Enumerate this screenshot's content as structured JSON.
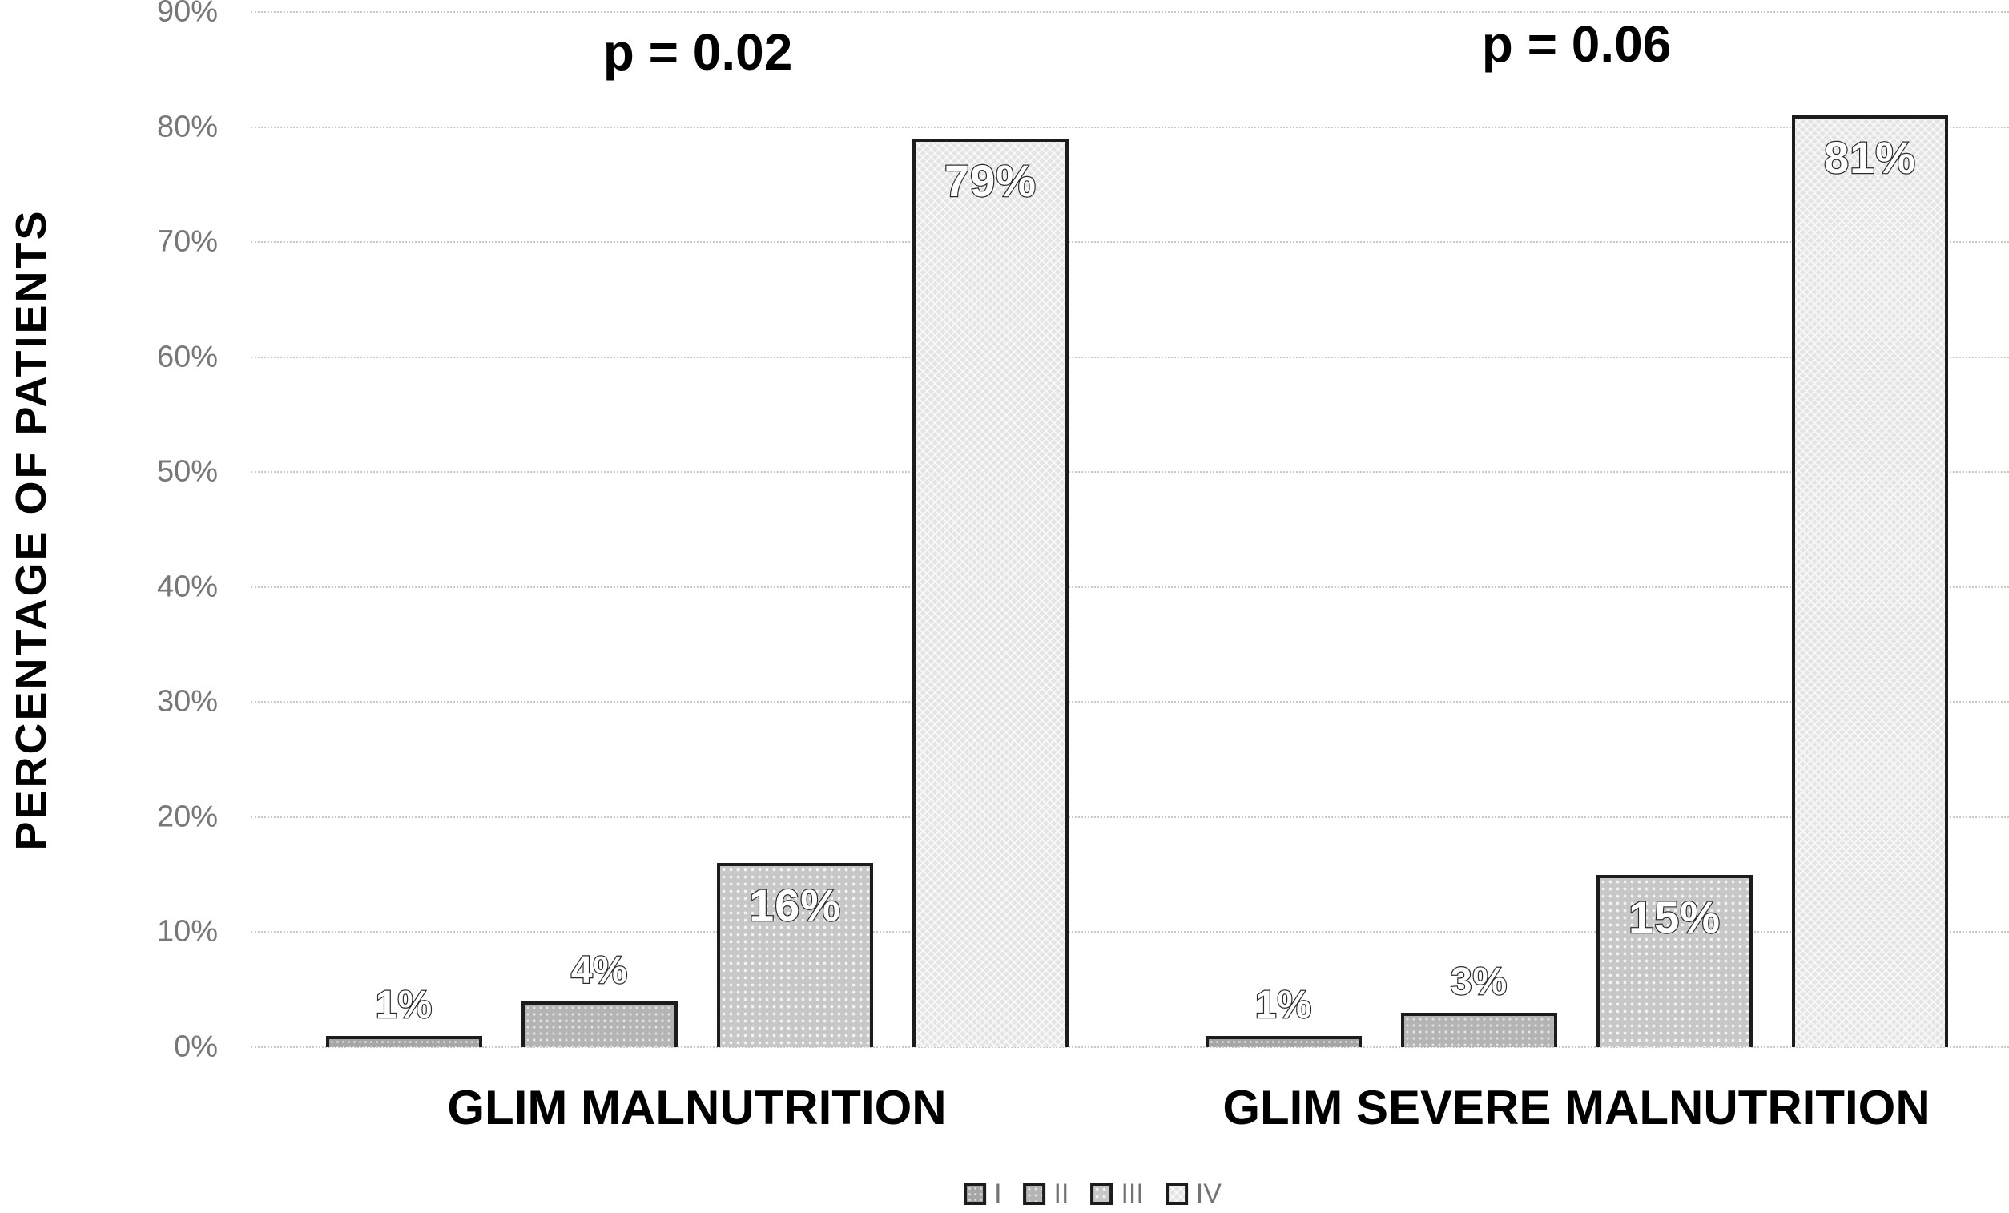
{
  "chart_data": {
    "type": "bar",
    "title": "",
    "xlabel": "",
    "ylabel": "PERCENTAGE OF PATIENTS",
    "ylim": [
      0,
      90
    ],
    "ytick_step": 10,
    "yticks": [
      "0%",
      "10%",
      "20%",
      "30%",
      "40%",
      "50%",
      "60%",
      "70%",
      "80%",
      "90%"
    ],
    "grid": true,
    "gridline_style": "dotted",
    "categories": [
      "GLIM MALNUTRITION",
      "GLIM SEVERE MALNUTRITION"
    ],
    "series": [
      {
        "name": "I",
        "values": [
          1,
          1
        ]
      },
      {
        "name": "II",
        "values": [
          4,
          3
        ]
      },
      {
        "name": "III",
        "values": [
          16,
          15
        ]
      },
      {
        "name": "IV",
        "values": [
          79,
          81
        ]
      }
    ],
    "data_labels": [
      [
        "1%",
        "4%",
        "16%",
        "79%"
      ],
      [
        "1%",
        "3%",
        "15%",
        "81%"
      ]
    ],
    "annotations": [
      {
        "text": "p = 0.02",
        "category_index": 0
      },
      {
        "text": "p = 0.06",
        "category_index": 1
      }
    ],
    "legend": [
      "I",
      "II",
      "III",
      "IV"
    ],
    "legend_position": "bottom"
  },
  "colors": {
    "series_fills": [
      "#a6a6a6",
      "#b4b4b4",
      "#c7c7c7",
      "#e4e4e4"
    ],
    "bar_border": "#1c1c1c",
    "gridline": "#c9c9c9",
    "tick_label": "#777777",
    "axis_title": "#000000",
    "category_label": "#000000",
    "annotation": "#000000",
    "legend_label": "#737373",
    "data_label_fill": "#ffffff",
    "data_label_outline": "#2b2b2b",
    "background": "#ffffff"
  }
}
